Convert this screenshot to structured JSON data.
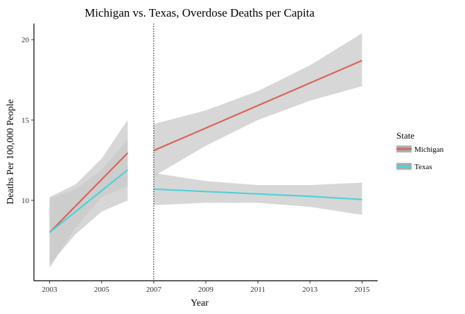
{
  "chart_data": {
    "type": "line",
    "title": "Michigan vs. Texas, Overdose Deaths per Capita",
    "xlabel": "Year",
    "ylabel": "Deaths Per 100,000 People",
    "xlim": [
      2002.4,
      2015.6
    ],
    "ylim": [
      5.0,
      21.0
    ],
    "x_ticks": [
      2003,
      2005,
      2007,
      2009,
      2011,
      2013,
      2015
    ],
    "y_ticks": [
      10,
      15,
      20
    ],
    "vline_x": 2007,
    "grid": false,
    "legend": {
      "title": "State",
      "position": "right",
      "items": [
        "Michigan",
        "Texas"
      ]
    },
    "colors": {
      "band": "#c9c9c9",
      "band_opacity": 0.75
    },
    "series": [
      {
        "name": "Michigan",
        "color": "#d9635a",
        "segments": [
          {
            "x": [
              2003,
              2004,
              2005,
              2006
            ],
            "y": [
              8.0,
              9.65,
              11.3,
              12.95
            ],
            "lower": [
              5.8,
              8.3,
              10.2,
              10.9
            ],
            "upper": [
              10.2,
              11.0,
              12.6,
              15.0
            ]
          },
          {
            "x": [
              2007,
              2009,
              2011,
              2013,
              2015
            ],
            "y": [
              13.1,
              14.5,
              15.9,
              17.3,
              18.7
            ],
            "lower": [
              11.5,
              13.4,
              15.0,
              16.2,
              17.1
            ],
            "upper": [
              14.75,
              15.6,
              16.8,
              18.4,
              20.4
            ]
          }
        ]
      },
      {
        "name": "Texas",
        "color": "#4ed2d8",
        "segments": [
          {
            "x": [
              2003,
              2004,
              2005,
              2006
            ],
            "y": [
              8.0,
              9.3,
              10.6,
              11.9
            ],
            "lower": [
              6.0,
              7.9,
              9.3,
              10.0
            ],
            "upper": [
              10.1,
              10.7,
              11.9,
              13.8
            ]
          },
          {
            "x": [
              2007,
              2009,
              2011,
              2013,
              2015
            ],
            "y": [
              10.7,
              10.55,
              10.4,
              10.25,
              10.05
            ],
            "lower": [
              9.7,
              9.85,
              9.85,
              9.6,
              9.1
            ],
            "upper": [
              11.7,
              11.2,
              10.95,
              10.95,
              11.1
            ]
          }
        ]
      }
    ]
  }
}
